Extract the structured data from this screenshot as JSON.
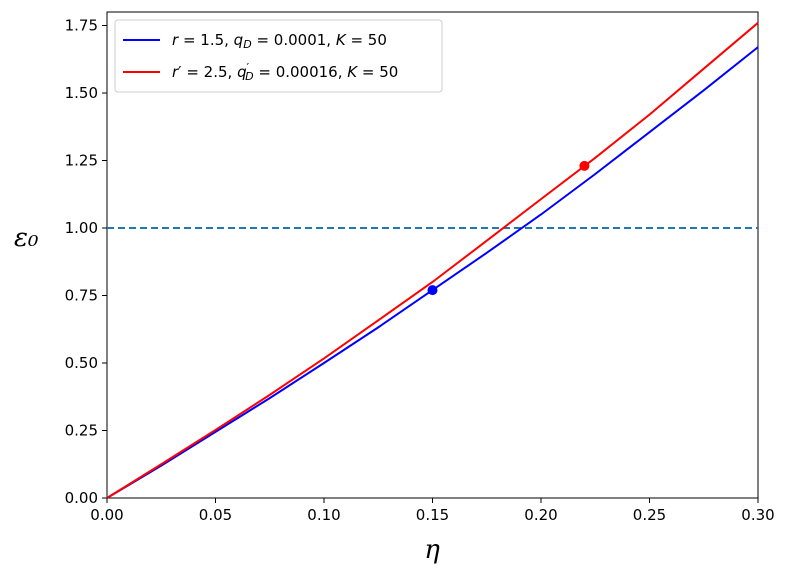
{
  "chart_data": {
    "type": "line",
    "xlabel": "η",
    "ylabel": "ε₀",
    "xlim": [
      0.0,
      0.3
    ],
    "ylim": [
      0.0,
      1.8
    ],
    "xticks": [
      "0.00",
      "0.05",
      "0.10",
      "0.15",
      "0.20",
      "0.25",
      "0.30"
    ],
    "yticks": [
      "0.00",
      "0.25",
      "0.50",
      "0.75",
      "1.00",
      "1.25",
      "1.50",
      "1.75"
    ],
    "grid": false,
    "legend_position": "upper-left",
    "series": [
      {
        "name": "r = 1.5, q_D = 0.0001, K = 50",
        "color": "#0000ff",
        "x": [
          0.0,
          0.025,
          0.05,
          0.075,
          0.1,
          0.125,
          0.15,
          0.175,
          0.2,
          0.225,
          0.25,
          0.275,
          0.3
        ],
        "y": [
          0.0,
          0.12,
          0.245,
          0.37,
          0.5,
          0.632,
          0.77,
          0.908,
          1.05,
          1.2,
          1.355,
          1.51,
          1.67
        ],
        "marker_point": {
          "x": 0.15,
          "y": 0.77
        }
      },
      {
        "name": "r′ = 2.5, q′_D = 0.00016, K = 50",
        "color": "#ff0000",
        "x": [
          0.0,
          0.025,
          0.05,
          0.075,
          0.1,
          0.125,
          0.15,
          0.175,
          0.2,
          0.225,
          0.25,
          0.275,
          0.3
        ],
        "y": [
          0.0,
          0.125,
          0.252,
          0.382,
          0.517,
          0.658,
          0.8,
          0.953,
          1.107,
          1.26,
          1.42,
          1.59,
          1.76
        ],
        "marker_point": {
          "x": 0.22,
          "y": 1.23
        }
      }
    ],
    "reference_line": {
      "y": 1.0,
      "color": "#1f77b4",
      "style": "dashed"
    }
  }
}
